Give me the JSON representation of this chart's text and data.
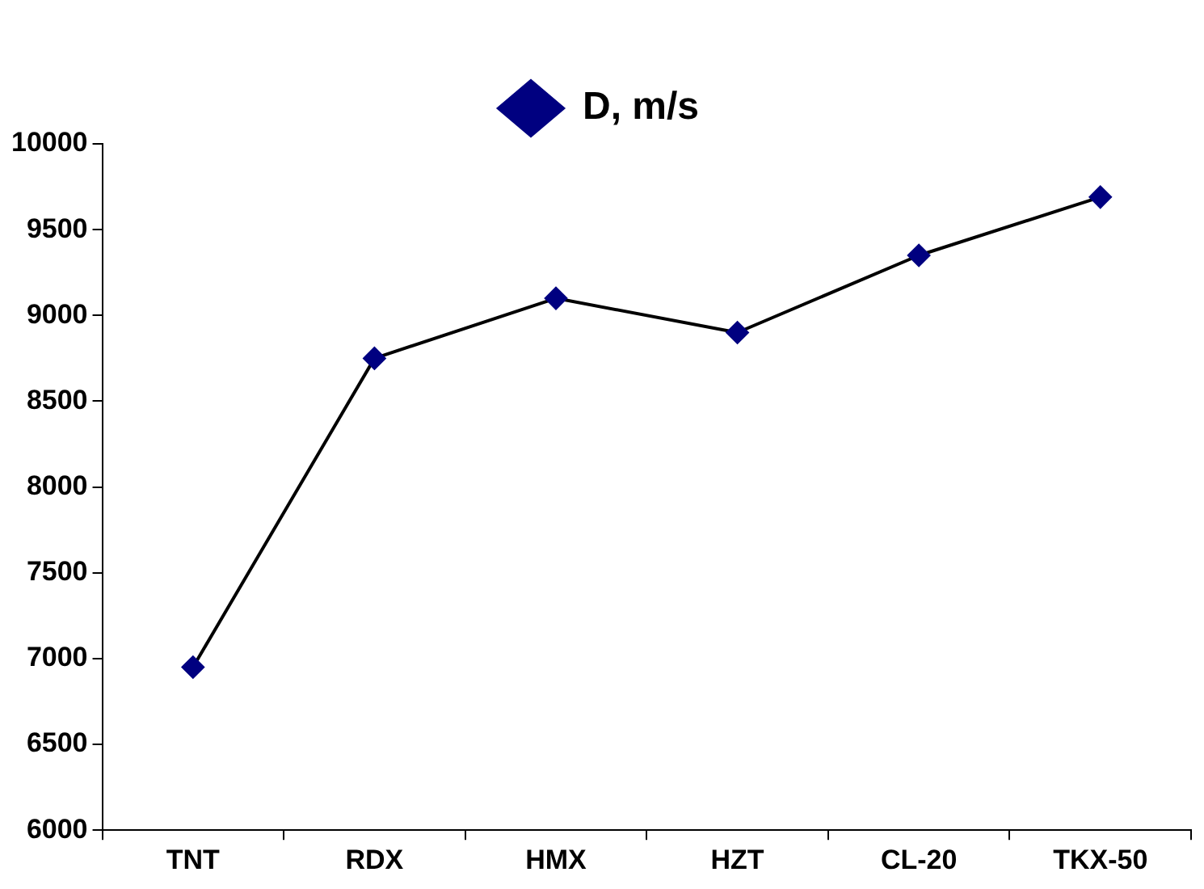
{
  "chart_data": {
    "type": "line",
    "categories": [
      "TNT",
      "RDX",
      "HMX",
      "HZT",
      "CL-20",
      "TKX-50"
    ],
    "series": [
      {
        "name": "D, m/s",
        "color": "#000080",
        "values": [
          6950,
          8750,
          9100,
          8900,
          9350,
          9690
        ]
      }
    ],
    "ylim": [
      6000,
      10000
    ],
    "yticks": [
      6000,
      6500,
      7000,
      7500,
      8000,
      8500,
      9000,
      9500,
      10000
    ],
    "legend": "top",
    "marker": "diamond",
    "line_style": "solid"
  }
}
